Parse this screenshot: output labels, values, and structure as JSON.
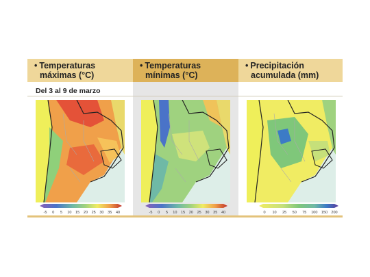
{
  "panels": [
    {
      "title_line1": "Temperaturas",
      "title_line2": "máximas (°C)",
      "legend": [
        "-5",
        "0",
        "5",
        "10",
        "15",
        "20",
        "25",
        "30",
        "35",
        "40"
      ]
    },
    {
      "title_line1": "Temperaturas",
      "title_line2": "mínimas (°C)",
      "legend": [
        "-5",
        "0",
        "5",
        "10",
        "15",
        "20",
        "25",
        "30",
        "35",
        "40"
      ]
    },
    {
      "title_line1": "Precipitación",
      "title_line2": "acumulada (mm)",
      "legend": [
        "0",
        "10",
        "25",
        "50",
        "75",
        "100",
        "150",
        "200"
      ]
    }
  ],
  "date_range": "Del 3 al 9 de marzo",
  "bullet": "•",
  "colors": {
    "header_light": "#efd79a",
    "header_dark": "#ddb259",
    "ocean": "#ddeee8",
    "neighbor": "#efef5a"
  }
}
